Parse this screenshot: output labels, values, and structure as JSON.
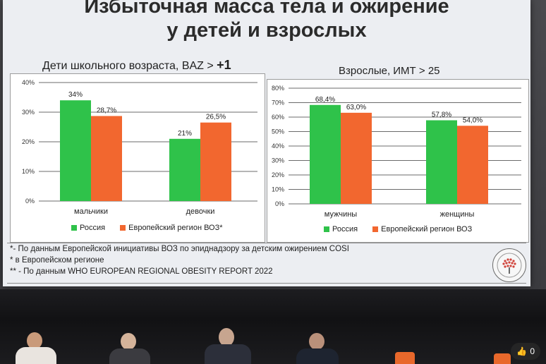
{
  "slide": {
    "title_line1": "Избыточная масса тела и ожирение",
    "title_line2": "у детей и взрослых",
    "footnotes": [
      "*- По данным Европейской инициативы ВОЗ по эпиднадзору за детским ожирением COSI",
      "* в Европейском регионе",
      "**  - По данным WHO EUROPEAN REGIONAL OBESITY REPORT 2022"
    ]
  },
  "colors": {
    "russia": "#2fc24a",
    "europe": "#f2672f"
  },
  "chart_data": [
    {
      "type": "bar",
      "heading_main": "Дети школьного возраста, BAZ",
      "heading_op": " > ",
      "heading_val": "+1",
      "categories": [
        "мальчики",
        "девочки"
      ],
      "series": [
        {
          "name": "Россия",
          "values": [
            34,
            21
          ],
          "labels": [
            "34%",
            "21%"
          ]
        },
        {
          "name": "Европейский регион ВОЗ*",
          "values": [
            28.7,
            26.5
          ],
          "labels": [
            "28,7%",
            "26,5%"
          ]
        }
      ],
      "ylim": [
        0,
        40
      ],
      "yticks": [
        0,
        10,
        20,
        30,
        40
      ],
      "ytick_labels": [
        "0%",
        "10%",
        "20%",
        "30%",
        "40%"
      ],
      "grid": true,
      "legend_position": "bottom"
    },
    {
      "type": "bar",
      "heading_main": "Взрослые, ИМТ",
      "heading_op": " > ",
      "heading_val": "25",
      "categories": [
        "мужчины",
        "женщины"
      ],
      "series": [
        {
          "name": "Россия",
          "values": [
            68.4,
            57.8
          ],
          "labels": [
            "68,4%",
            "57,8%"
          ]
        },
        {
          "name": "Европейский регион ВОЗ",
          "values": [
            63.0,
            54.0
          ],
          "labels": [
            "63,0%",
            "54,0%"
          ]
        }
      ],
      "ylim": [
        0,
        80
      ],
      "yticks": [
        0,
        10,
        20,
        30,
        40,
        50,
        60,
        70,
        80
      ],
      "ytick_labels": [
        "0%",
        "10%",
        "20%",
        "30%",
        "40%",
        "50%",
        "60%",
        "70%",
        "80%"
      ],
      "grid": true,
      "legend_position": "bottom"
    }
  ],
  "video_ui": {
    "like_count": "0"
  }
}
